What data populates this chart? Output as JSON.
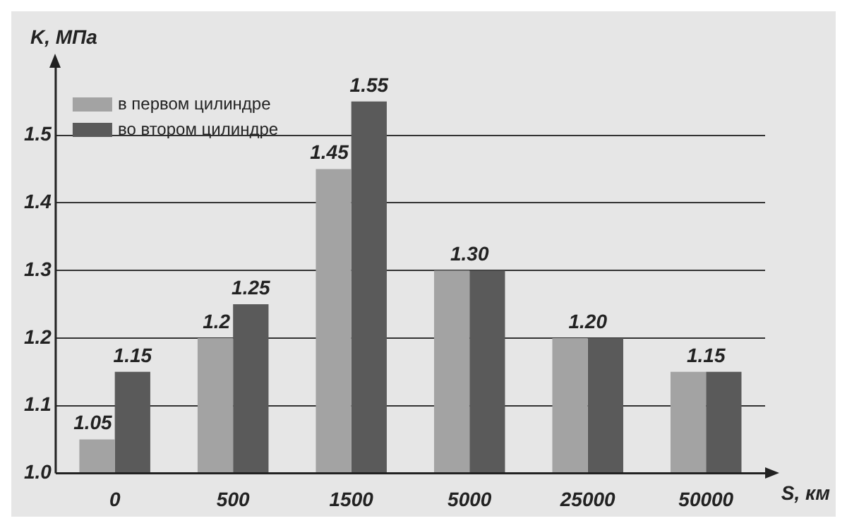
{
  "chart_data": {
    "type": "bar",
    "xlabel": "S, км",
    "ylabel": "K, МПа",
    "categories": [
      "0",
      "500",
      "1500",
      "5000",
      "25000",
      "50000"
    ],
    "series": [
      {
        "name": "в первом цилиндре",
        "color": "#a3a3a3",
        "values": [
          1.05,
          1.2,
          1.45,
          1.3,
          1.2,
          1.15
        ],
        "value_labels": [
          "1.05",
          "1.2",
          "1.45",
          null,
          null,
          null
        ]
      },
      {
        "name": "во втором цилиндре",
        "color": "#5a5a5a",
        "values": [
          1.15,
          1.25,
          1.55,
          1.3,
          1.2,
          1.15
        ],
        "value_labels": [
          "1.15",
          "1.25",
          "1.55",
          "1.30",
          "1.20",
          "1.15"
        ]
      }
    ],
    "ylim": [
      1.0,
      1.6
    ],
    "yticks": [
      {
        "value": 1.0,
        "label": "1.0"
      },
      1.1,
      1.2,
      1.3,
      1.4,
      1.5
    ],
    "grid": "y",
    "legend": "top left"
  }
}
